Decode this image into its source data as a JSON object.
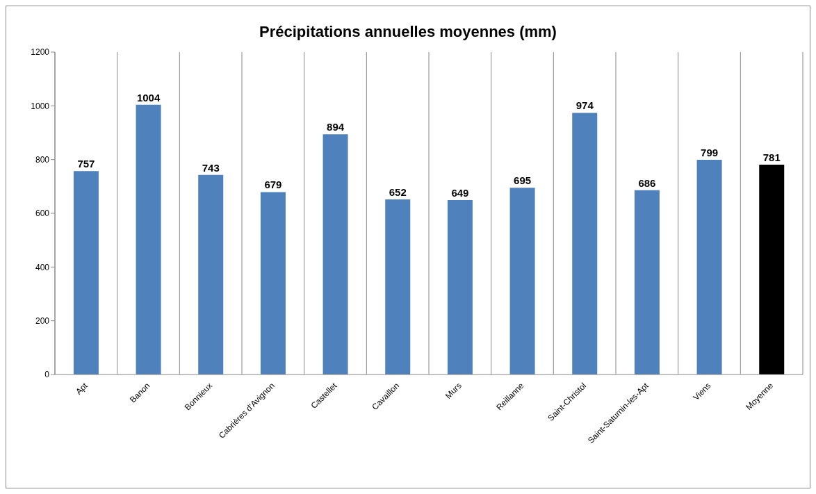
{
  "chart_data": {
    "type": "bar",
    "title": "Précipitations annuelles moyennes (mm)",
    "categories": [
      "Apt",
      "Banon",
      "Bonnieux",
      "Cabrières d'Avignon",
      "Castellet",
      "Cavaillon",
      "Murs",
      "Reillanne",
      "Saint-Christol",
      "Saint-Saturnin-les-Apt",
      "Viens",
      "Moyenne"
    ],
    "values": [
      757,
      1004,
      743,
      679,
      894,
      652,
      649,
      695,
      974,
      686,
      799,
      781
    ],
    "colors": [
      "#4f81bd",
      "#4f81bd",
      "#4f81bd",
      "#4f81bd",
      "#4f81bd",
      "#4f81bd",
      "#4f81bd",
      "#4f81bd",
      "#4f81bd",
      "#4f81bd",
      "#4f81bd",
      "#000000"
    ],
    "ylim": [
      0,
      1200
    ],
    "yticks": [
      0,
      200,
      400,
      600,
      800,
      1000,
      1200
    ],
    "grid": "x",
    "data_labels": true,
    "legend": false
  }
}
